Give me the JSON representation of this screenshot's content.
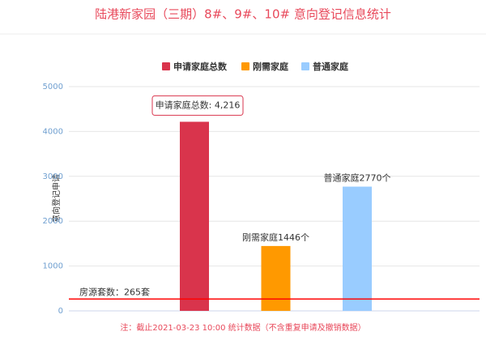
{
  "chart_data": {
    "type": "bar",
    "title": "陆港新家园（三期）8#、9#、10# 意向登记信息统计",
    "y_label": "意向登记申请",
    "categories": [
      "申请家庭总数",
      "刚需家庭",
      "普通家庭"
    ],
    "values": [
      4216,
      1446,
      2770
    ],
    "value_labels": [
      "申请家庭总数: 4,216",
      "刚需家庭1446个",
      "普通家庭2770个"
    ],
    "colors": [
      "#d9344c",
      "#ff9900",
      "#99ccff"
    ],
    "ylim": [
      0,
      5000
    ],
    "yticks": [
      0,
      1000,
      2000,
      3000,
      4000,
      5000
    ],
    "grid": true,
    "reference_line": {
      "value": 265,
      "label": "房源套数：265套",
      "color": "#ff0000"
    },
    "note": "注：截止2021-03-23 10:00 统计数据（不含重复申请及撤销数据）"
  }
}
